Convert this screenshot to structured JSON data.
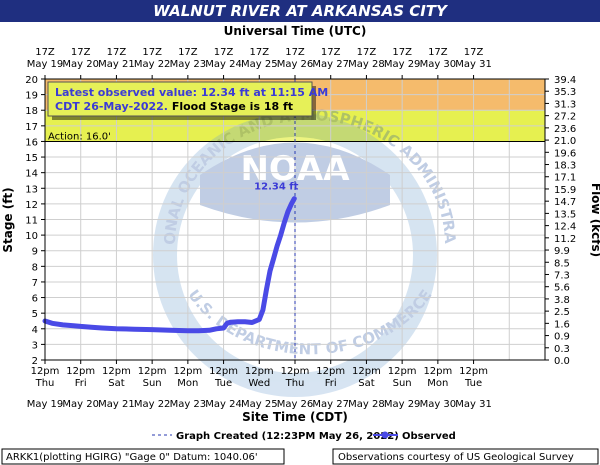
{
  "chart_data": {
    "type": "line",
    "title": "WALNUT RIVER AT ARKANSAS CITY",
    "top_axis_title": "Universal Time (UTC)",
    "bottom_axis_title": "Site Time (CDT)",
    "ylabel": "Stage (ft)",
    "y2label": "Flow (kcfs)",
    "ylim": [
      2,
      20
    ],
    "y_ticks": [
      2,
      3,
      4,
      5,
      6,
      7,
      8,
      9,
      10,
      11,
      12,
      13,
      14,
      15,
      16,
      17,
      18,
      19,
      20
    ],
    "y2_ticks": [
      "0.0",
      "0.3",
      "0.9",
      "1.6",
      "2.5",
      "3.8",
      "5.6",
      "7.3",
      "8.5",
      "9.9",
      "11.2",
      "12.4",
      "13.5",
      "14.7",
      "15.9",
      "17.1",
      "18.3",
      "19.6",
      "21.0",
      "23.6",
      "27.2",
      "31.3",
      "35.3",
      "39.4"
    ],
    "x_days": 14,
    "utc_ticks": [
      {
        "t": "17Z",
        "d": "May 19"
      },
      {
        "t": "17Z",
        "d": "May 20"
      },
      {
        "t": "17Z",
        "d": "May 21"
      },
      {
        "t": "17Z",
        "d": "May 22"
      },
      {
        "t": "17Z",
        "d": "May 23"
      },
      {
        "t": "17Z",
        "d": "May 24"
      },
      {
        "t": "17Z",
        "d": "May 25"
      },
      {
        "t": "17Z",
        "d": "May 26"
      },
      {
        "t": "17Z",
        "d": "May 27"
      },
      {
        "t": "17Z",
        "d": "May 28"
      },
      {
        "t": "17Z",
        "d": "May 29"
      },
      {
        "t": "17Z",
        "d": "May 30"
      },
      {
        "t": "17Z",
        "d": "May 31"
      }
    ],
    "local_ticks": [
      {
        "t": "12pm",
        "dow": "Thu",
        "d": "May 19"
      },
      {
        "t": "12pm",
        "dow": "Fri",
        "d": "May 20"
      },
      {
        "t": "12pm",
        "dow": "Sat",
        "d": "May 21"
      },
      {
        "t": "12pm",
        "dow": "Sun",
        "d": "May 22"
      },
      {
        "t": "12pm",
        "dow": "Mon",
        "d": "May 23"
      },
      {
        "t": "12pm",
        "dow": "Tue",
        "d": "May 24"
      },
      {
        "t": "12pm",
        "dow": "Wed",
        "d": "May 25"
      },
      {
        "t": "12pm",
        "dow": "Thu",
        "d": "May 26"
      },
      {
        "t": "12pm",
        "dow": "Fri",
        "d": "May 27"
      },
      {
        "t": "12pm",
        "dow": "Sat",
        "d": "May 28"
      },
      {
        "t": "12pm",
        "dow": "Sun",
        "d": "May 29"
      },
      {
        "t": "12pm",
        "dow": "Mon",
        "d": "May 30"
      },
      {
        "t": "12pm",
        "dow": "Tue",
        "d": "May 31"
      }
    ],
    "flood_bands": [
      {
        "from": 16,
        "to": 18,
        "color": "#e6f050"
      },
      {
        "from": 18,
        "to": 20,
        "color": "#f5bb6c"
      }
    ],
    "action_label": "Action: 16.0'",
    "graph_created_x": 7.0,
    "series": [
      {
        "name": "Observed",
        "color": "#4a4ae6",
        "x": [
          0.0,
          0.2,
          0.5,
          0.8,
          1.0,
          1.3,
          1.6,
          2.0,
          2.5,
          3.0,
          3.5,
          4.0,
          4.3,
          4.6,
          4.8,
          5.0,
          5.1,
          5.2,
          5.4,
          5.6,
          5.8,
          6.0,
          6.1,
          6.2,
          6.3,
          6.4,
          6.5,
          6.6,
          6.7,
          6.8,
          6.9,
          6.98
        ],
        "y": [
          4.5,
          4.35,
          4.25,
          4.2,
          4.15,
          4.1,
          4.05,
          4.0,
          3.97,
          3.95,
          3.9,
          3.88,
          3.87,
          3.9,
          4.0,
          4.05,
          4.35,
          4.42,
          4.45,
          4.45,
          4.4,
          4.6,
          5.2,
          6.5,
          7.7,
          8.5,
          9.3,
          10.0,
          10.8,
          11.5,
          12.0,
          12.34
        ]
      }
    ],
    "last_value_label": "12.34 ft",
    "latest_line1": "Latest observed value: 12.34 ft at 11:15 AM",
    "latest_line2a": "CDT 26-May-2022.",
    "latest_line2b": " Flood Stage is 18 ft",
    "legend_created": "Graph Created (12:23PM May 26, 2022)",
    "legend_observed": "Observed",
    "footer_left": "ARKK1(plotting HGIRG) \"Gage 0\" Datum: 1040.06'",
    "footer_right": "Observations courtesy of US Geological Survey",
    "watermark_ring": "NATIONAL OCEANIC AND ATMOSPHERIC ADMINISTRATION",
    "watermark_bottom": "U.S. DEPARTMENT OF COMMERCE",
    "watermark_logo": "NOAA"
  }
}
